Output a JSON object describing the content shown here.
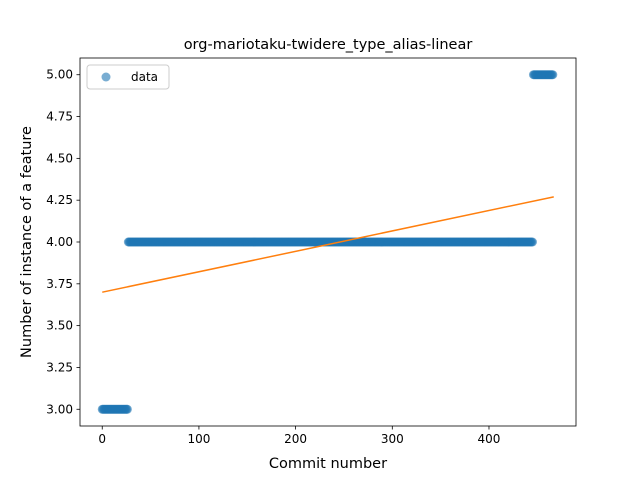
{
  "chart_data": {
    "type": "scatter",
    "title": "org-mariotaku-twidere_type_alias-linear",
    "xlabel": "Commit number",
    "ylabel": "Number of instance of a feature",
    "xlim": [
      -23,
      490
    ],
    "ylim": [
      2.9,
      5.1
    ],
    "xticks": [
      0,
      100,
      200,
      300,
      400
    ],
    "yticks": [
      3.0,
      3.25,
      3.5,
      3.75,
      4.0,
      4.25,
      4.5,
      4.75,
      5.0
    ],
    "ytick_labels": [
      "3.00",
      "3.25",
      "3.50",
      "3.75",
      "4.00",
      "4.25",
      "4.50",
      "4.75",
      "5.00"
    ],
    "legend": {
      "position": "top-left",
      "entries": [
        "data"
      ]
    },
    "colors": {
      "data": "#1f77b4",
      "fit": "#ff7f0e"
    },
    "series": [
      {
        "name": "data",
        "kind": "points",
        "segments": [
          {
            "x_start": 0,
            "x_end": 27,
            "y": 3.0
          },
          {
            "x_start": 27,
            "x_end": 446,
            "y": 4.0
          },
          {
            "x_start": 446,
            "x_end": 467,
            "y": 5.0
          }
        ]
      },
      {
        "kind": "line",
        "x": [
          0,
          467
        ],
        "y": [
          3.7,
          4.27
        ]
      }
    ]
  }
}
